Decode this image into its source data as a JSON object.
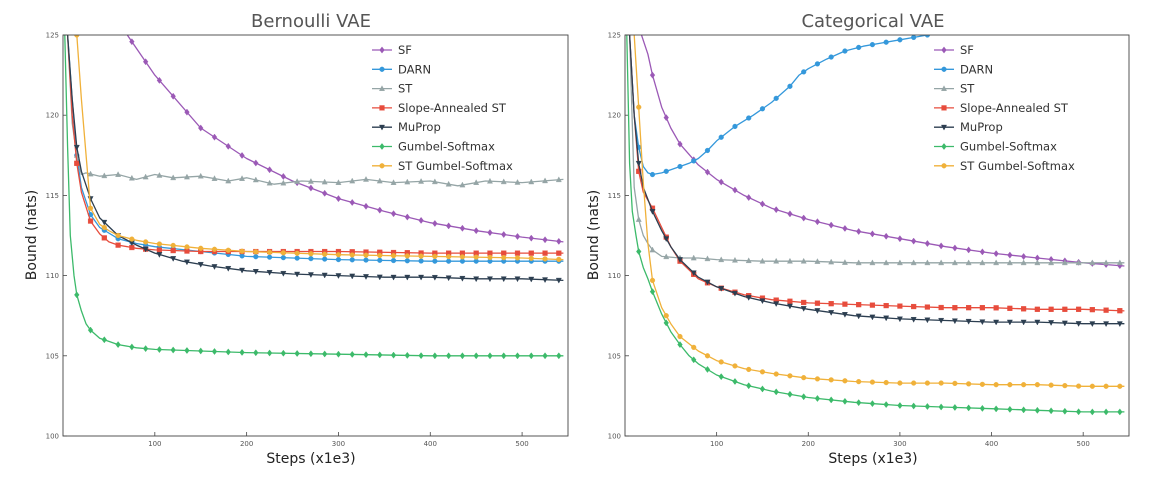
{
  "chart_data": [
    {
      "type": "line",
      "title": "Bernoulli VAE",
      "xlabel": "Steps (x1e3)",
      "ylabel": "Bound (nats)",
      "xlim": [
        0,
        550
      ],
      "ylim": [
        100,
        125
      ],
      "xticks": [
        100,
        200,
        300,
        400,
        500
      ],
      "yticks": [
        100,
        105,
        110,
        115,
        120,
        125
      ],
      "legend_position": "top-right",
      "series": [
        {
          "name": "SF",
          "color": "#9b59b6",
          "marker": "diamond",
          "x": [
            70,
            100,
            150,
            200,
            250,
            300,
            350,
            400,
            450,
            500,
            545
          ],
          "y": [
            125,
            122.5,
            119.2,
            117.3,
            115.9,
            114.8,
            114.0,
            113.3,
            112.8,
            112.4,
            112.1
          ]
        },
        {
          "name": "DARN",
          "color": "#3498db",
          "marker": "circle",
          "x": [
            5,
            10,
            15,
            20,
            30,
            40,
            60,
            80,
            100,
            150,
            200,
            300,
            400,
            500,
            545
          ],
          "y": [
            125,
            121,
            117.5,
            115.5,
            113.8,
            113.0,
            112.3,
            112.0,
            111.8,
            111.5,
            111.2,
            111.0,
            110.9,
            110.9,
            110.9
          ]
        },
        {
          "name": "ST",
          "color": "#95a5a6",
          "marker": "triangle",
          "x": [
            5,
            10,
            15,
            20,
            25,
            40,
            60,
            80,
            100,
            120,
            150,
            180,
            200,
            230,
            260,
            300,
            330,
            360,
            400,
            430,
            460,
            500,
            545
          ],
          "y": [
            125,
            119.5,
            117.5,
            116.3,
            116.4,
            116.2,
            116.3,
            116.0,
            116.3,
            116.1,
            116.2,
            115.9,
            116.1,
            115.7,
            115.9,
            115.8,
            116.0,
            115.8,
            115.9,
            115.6,
            115.9,
            115.8,
            116.0
          ]
        },
        {
          "name": "Slope-Annealed ST",
          "color": "#e74c3c",
          "marker": "square",
          "x": [
            5,
            10,
            15,
            20,
            30,
            40,
            50,
            60,
            80,
            100,
            150,
            200,
            300,
            400,
            500,
            545
          ],
          "y": [
            125,
            120,
            117.0,
            115.2,
            113.4,
            112.6,
            112.1,
            111.9,
            111.7,
            111.6,
            111.5,
            111.5,
            111.5,
            111.4,
            111.4,
            111.4
          ]
        },
        {
          "name": "MuProp",
          "color": "#2c3e50",
          "marker": "triangle-down",
          "x": [
            5,
            10,
            15,
            20,
            30,
            40,
            60,
            80,
            100,
            130,
            160,
            200,
            250,
            300,
            350,
            400,
            450,
            500,
            545
          ],
          "y": [
            125,
            121,
            118.0,
            116.5,
            114.8,
            113.6,
            112.5,
            111.9,
            111.4,
            110.9,
            110.6,
            110.3,
            110.1,
            110.0,
            109.9,
            109.9,
            109.8,
            109.8,
            109.7
          ]
        },
        {
          "name": "Gumbel-Softmax",
          "color": "#3cba6a",
          "marker": "diamond",
          "x": [
            2,
            5,
            8,
            12,
            15,
            20,
            25,
            30,
            40,
            50,
            60,
            80,
            100,
            150,
            200,
            300,
            400,
            500,
            545
          ],
          "y": [
            125,
            118,
            112.5,
            110.0,
            108.8,
            107.8,
            107.0,
            106.6,
            106.1,
            105.9,
            105.7,
            105.5,
            105.4,
            105.3,
            105.2,
            105.1,
            105.0,
            105.0,
            105.0
          ]
        },
        {
          "name": "ST Gumbel-Softmax",
          "color": "#f0b13a",
          "marker": "circle",
          "x": [
            15,
            20,
            30,
            40,
            50,
            60,
            80,
            100,
            150,
            200,
            300,
            400,
            500,
            545
          ],
          "y": [
            125,
            121.0,
            114.2,
            113.2,
            112.8,
            112.5,
            112.2,
            112.0,
            111.7,
            111.5,
            111.3,
            111.2,
            111.1,
            111.0
          ]
        }
      ]
    },
    {
      "type": "line",
      "title": "Categorical VAE",
      "xlabel": "Steps (x1e3)",
      "ylabel": "Bound (nats)",
      "xlim": [
        0,
        550
      ],
      "ylim": [
        100,
        125
      ],
      "xticks": [
        100,
        200,
        300,
        400,
        500
      ],
      "yticks": [
        100,
        105,
        110,
        115,
        120,
        125
      ],
      "legend_position": "top-right",
      "series": [
        {
          "name": "SF",
          "color": "#9b59b6",
          "marker": "diamond",
          "x": [
            18,
            25,
            30,
            40,
            50,
            60,
            80,
            100,
            130,
            160,
            200,
            250,
            300,
            350,
            400,
            450,
            500,
            545
          ],
          "y": [
            125,
            123.8,
            122.5,
            120.5,
            119.2,
            118.2,
            116.9,
            116.0,
            115.0,
            114.2,
            113.5,
            112.8,
            112.3,
            111.8,
            111.4,
            111.1,
            110.8,
            110.6
          ]
        },
        {
          "name": "DARN",
          "color": "#3498db",
          "marker": "circle",
          "x": [
            5,
            10,
            15,
            20,
            25,
            30,
            40,
            50,
            60,
            70,
            80,
            90,
            100,
            120,
            140,
            160,
            180,
            190,
            200,
            220,
            240,
            260,
            280,
            300,
            320,
            330
          ],
          "y": [
            125,
            120,
            118.0,
            116.8,
            116.4,
            116.3,
            116.4,
            116.6,
            116.8,
            117.0,
            117.3,
            117.8,
            118.4,
            119.3,
            120.0,
            120.8,
            121.8,
            122.5,
            122.9,
            123.5,
            124.0,
            124.3,
            124.5,
            124.7,
            124.9,
            125.0
          ]
        },
        {
          "name": "ST",
          "color": "#95a5a6",
          "marker": "triangle",
          "x": [
            5,
            10,
            15,
            20,
            25,
            30,
            40,
            60,
            80,
            100,
            150,
            200,
            250,
            300,
            350,
            400,
            450,
            500,
            545
          ],
          "y": [
            125,
            115.5,
            113.5,
            112.5,
            112.0,
            111.6,
            111.2,
            111.1,
            111.1,
            111.0,
            110.9,
            110.9,
            110.8,
            110.8,
            110.8,
            110.8,
            110.8,
            110.8,
            110.8
          ]
        },
        {
          "name": "Slope-Annealed ST",
          "color": "#e74c3c",
          "marker": "square",
          "x": [
            5,
            10,
            15,
            20,
            30,
            40,
            50,
            60,
            80,
            100,
            130,
            160,
            200,
            250,
            300,
            350,
            400,
            450,
            500,
            545
          ],
          "y": [
            125,
            120,
            116.5,
            115.2,
            114.2,
            113.0,
            111.8,
            110.9,
            109.8,
            109.3,
            108.8,
            108.5,
            108.3,
            108.2,
            108.1,
            108.0,
            108.0,
            107.9,
            107.9,
            107.8
          ]
        },
        {
          "name": "MuProp",
          "color": "#2c3e50",
          "marker": "triangle-down",
          "x": [
            5,
            10,
            15,
            20,
            30,
            40,
            50,
            60,
            80,
            100,
            130,
            160,
            200,
            250,
            300,
            350,
            400,
            450,
            500,
            545
          ],
          "y": [
            125,
            120,
            117.0,
            115.5,
            114.0,
            112.8,
            111.8,
            111.0,
            109.9,
            109.3,
            108.7,
            108.3,
            107.9,
            107.5,
            107.3,
            107.2,
            107.1,
            107.1,
            107.0,
            107.0
          ]
        },
        {
          "name": "Gumbel-Softmax",
          "color": "#3cba6a",
          "marker": "diamond",
          "x": [
            2,
            5,
            8,
            12,
            15,
            20,
            25,
            30,
            40,
            50,
            60,
            70,
            80,
            100,
            130,
            160,
            200,
            250,
            300,
            350,
            400,
            450,
            500,
            545
          ],
          "y": [
            125,
            117,
            114,
            112.5,
            111.5,
            110.5,
            109.8,
            109.0,
            107.6,
            106.5,
            105.7,
            105.0,
            104.5,
            103.8,
            103.2,
            102.8,
            102.4,
            102.1,
            101.9,
            101.8,
            101.7,
            101.6,
            101.5,
            101.5
          ]
        },
        {
          "name": "ST Gumbel-Softmax",
          "color": "#f0b13a",
          "marker": "circle",
          "x": [
            10,
            15,
            20,
            25,
            30,
            40,
            50,
            60,
            80,
            100,
            130,
            160,
            200,
            250,
            300,
            350,
            400,
            450,
            500,
            545
          ],
          "y": [
            125,
            120.5,
            115.8,
            112.0,
            109.7,
            108.0,
            107.0,
            106.2,
            105.3,
            104.7,
            104.2,
            103.9,
            103.6,
            103.4,
            103.3,
            103.3,
            103.2,
            103.2,
            103.1,
            103.1
          ]
        }
      ]
    }
  ]
}
